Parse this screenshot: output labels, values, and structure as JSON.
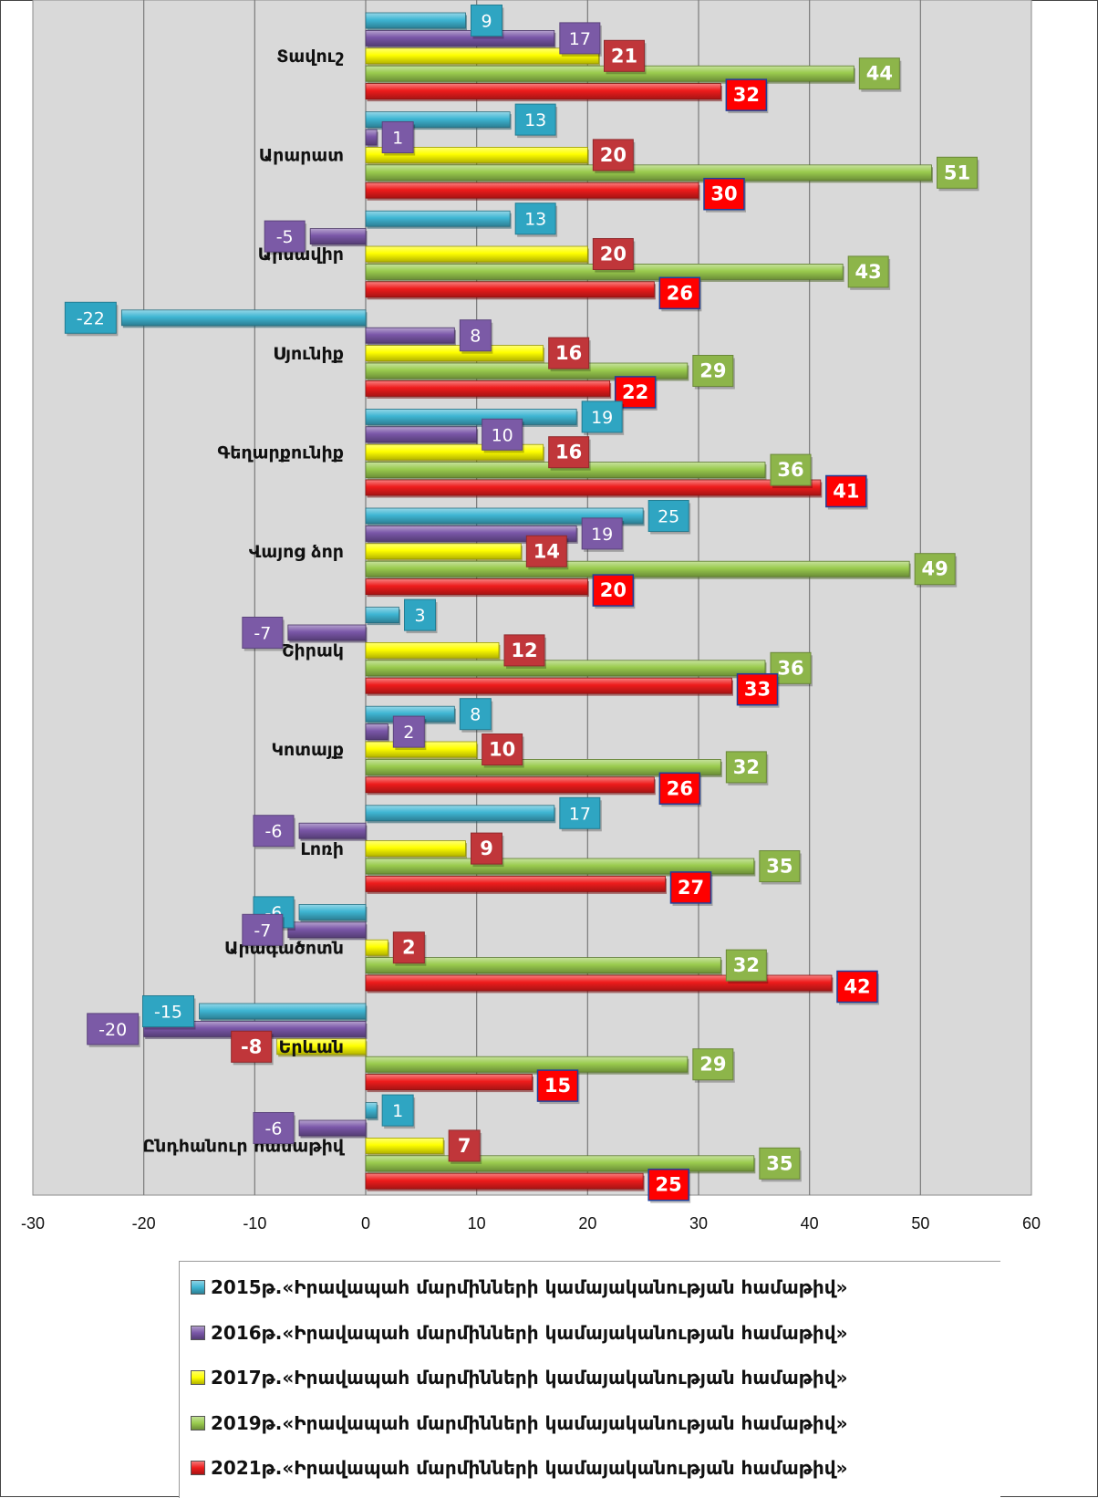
{
  "chart_data": {
    "type": "bar",
    "orientation": "horizontal",
    "categories": [
      "Տավուշ",
      "Արարատ",
      "Արմավիր",
      "Սյունիք",
      "Գեղարքունիք",
      "Վայոց ձոր",
      "Շիրակ",
      "Կոտայք",
      "Լոռի",
      "Արագածոտն",
      "Երևան",
      "Ընդհանուր համաթիվ"
    ],
    "series": [
      {
        "name": "2015թ.«Իրավապահ մարմինների կամայականության համաթիվ»",
        "color": "#3FB6D3",
        "label_bg": "#2FA5C2",
        "values": [
          9,
          13,
          13,
          -22,
          19,
          25,
          3,
          8,
          17,
          -6,
          -15,
          1
        ]
      },
      {
        "name": "2016թ.«Իրավապահ մարմինների կամայականության համաթիվ»",
        "color": "#7A57A8",
        "label_bg": "#7B5AA6",
        "values": [
          17,
          1,
          -5,
          8,
          10,
          19,
          -7,
          2,
          -6,
          -7,
          -20,
          -6
        ]
      },
      {
        "name": "2017թ.«Իրավապահ մարմինների կամայականության համաթիվ»",
        "color": "#FFFF00",
        "label_bg": "#C0363A",
        "values": [
          21,
          20,
          20,
          16,
          16,
          14,
          12,
          10,
          9,
          2,
          -8,
          7
        ]
      },
      {
        "name": "2019թ.«Իրավապահ մարմինների կամայականության համաթիվ»",
        "color": "#9ACB4E",
        "label_bg": "#8DB54A",
        "values": [
          44,
          51,
          43,
          29,
          36,
          49,
          36,
          32,
          35,
          32,
          29,
          35
        ]
      },
      {
        "name": "2021թ.«Իրավապահ մարմինների կամայականության համաթիվ»",
        "color": "#EE1C1C",
        "label_bg": "#FF0000",
        "values": [
          32,
          30,
          26,
          22,
          41,
          20,
          33,
          26,
          27,
          42,
          15,
          25
        ]
      }
    ],
    "xlim": [
      -30,
      60
    ],
    "x_ticks": [
      -30,
      -20,
      -10,
      0,
      10,
      20,
      30,
      40,
      50,
      60
    ],
    "grid": true,
    "legend_position": "bottom"
  }
}
